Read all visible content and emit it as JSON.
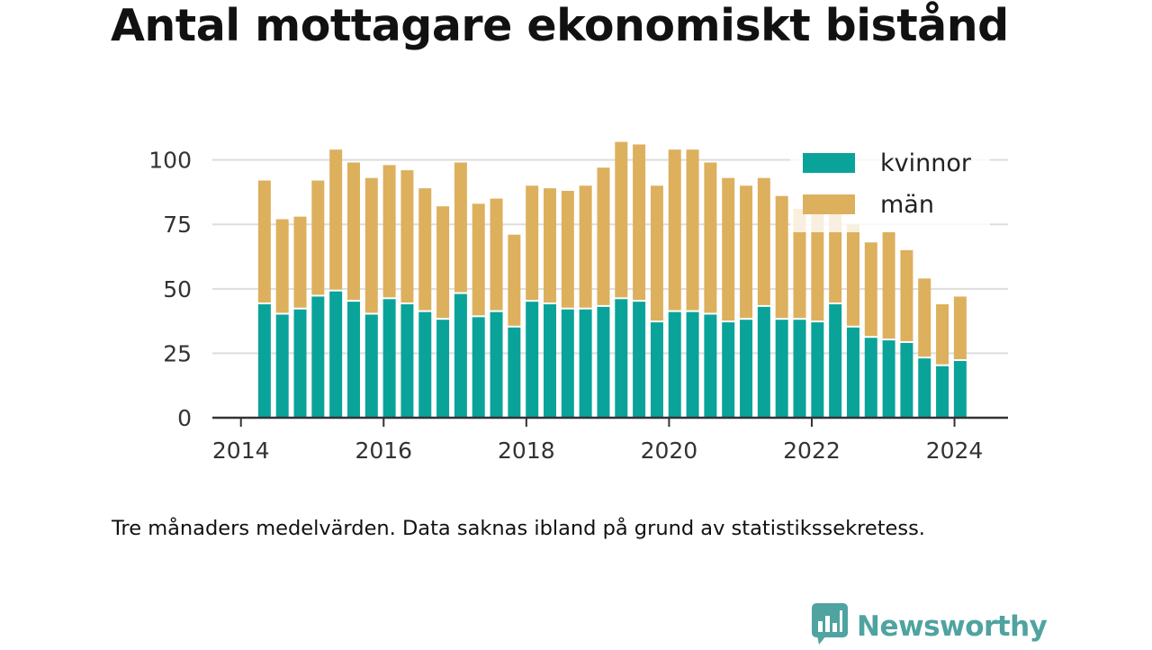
{
  "title": "Antal mottagare ekonomiskt bistånd",
  "caption": "Tre månaders medelvärden. Data saknas ibland på grund av statistikssekretess.",
  "logo": {
    "text": "Newsworthy",
    "icon": "bar-chart-speech-bubble-icon"
  },
  "colors": {
    "kvinnor": "#0aa39a",
    "man": "#ddb05e",
    "grid": "#dddddd",
    "axis": "#333333",
    "logo": "#4fa3a0"
  },
  "chart_data": {
    "type": "bar",
    "stacked": true,
    "xlim": [
      2013.6,
      2024.75
    ],
    "ylim": [
      0,
      110
    ],
    "x_ticks": [
      "2014",
      "2016",
      "2018",
      "2020",
      "2022",
      "2024"
    ],
    "y_ticks": [
      "0",
      "25",
      "50",
      "75",
      "100"
    ],
    "grid": true,
    "legend_position": "top-right",
    "x": [
      2014.33,
      2014.58,
      2014.83,
      2015.08,
      2015.33,
      2015.58,
      2015.83,
      2016.08,
      2016.33,
      2016.58,
      2016.83,
      2017.08,
      2017.33,
      2017.58,
      2017.83,
      2018.08,
      2018.33,
      2018.58,
      2018.83,
      2019.08,
      2019.33,
      2019.58,
      2019.83,
      2020.08,
      2020.33,
      2020.58,
      2020.83,
      2021.08,
      2021.33,
      2021.58,
      2021.83,
      2022.08,
      2022.33,
      2022.58,
      2022.83,
      2023.08,
      2023.33,
      2023.58,
      2023.83,
      2024.08
    ],
    "series": [
      {
        "name": "kvinnor",
        "values": [
          44,
          40,
          42,
          47,
          49,
          45,
          40,
          46,
          44,
          41,
          38,
          48,
          39,
          41,
          35,
          45,
          44,
          42,
          42,
          43,
          46,
          45,
          37,
          41,
          41,
          40,
          37,
          38,
          43,
          38,
          38,
          37,
          44,
          35,
          31,
          30,
          29,
          23,
          20,
          22
        ]
      },
      {
        "name": "män",
        "values": [
          48,
          37,
          36,
          45,
          55,
          54,
          53,
          52,
          52,
          48,
          44,
          51,
          44,
          44,
          36,
          45,
          45,
          46,
          48,
          54,
          61,
          61,
          53,
          63,
          63,
          59,
          56,
          52,
          50,
          48,
          43,
          44,
          40,
          40,
          37,
          42,
          36,
          31,
          24,
          25
        ]
      }
    ]
  }
}
